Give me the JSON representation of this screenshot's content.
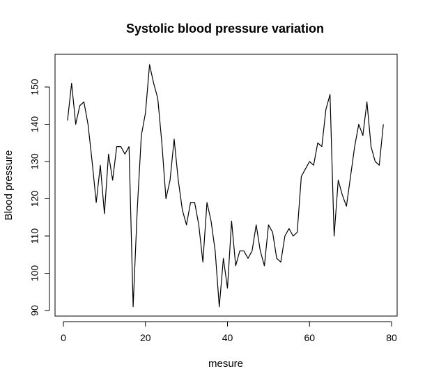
{
  "chart_data": {
    "type": "line",
    "title": "Systolic blood pressure variation",
    "xlabel": "mesure",
    "ylabel": "Blood pressure",
    "xlim": [
      0,
      80
    ],
    "ylim": [
      90,
      155
    ],
    "xticks": [
      0,
      20,
      40,
      60,
      80
    ],
    "yticks": [
      90,
      100,
      110,
      120,
      130,
      140,
      150
    ],
    "grid": false,
    "legend": "none",
    "line_color": "#000000",
    "series": [
      {
        "x": [
          1,
          2,
          3,
          4,
          5,
          6,
          7,
          8,
          9,
          10,
          11,
          12,
          13,
          14,
          15,
          16,
          17,
          18,
          19,
          20,
          21,
          22,
          23,
          24,
          25,
          26,
          27,
          28,
          29,
          30,
          31,
          32,
          33,
          34,
          35,
          36,
          37,
          38,
          39,
          40,
          41,
          42,
          43,
          44,
          45,
          46,
          47,
          48,
          49,
          50,
          51,
          52,
          53,
          54,
          55,
          56,
          57,
          58,
          59,
          60,
          61,
          62,
          63,
          64,
          65,
          66,
          67,
          68,
          69,
          70,
          71,
          72,
          73,
          74,
          75,
          76,
          77,
          78
        ],
        "values": [
          141,
          151,
          140,
          145,
          146,
          140,
          130,
          119,
          129,
          116,
          132,
          125,
          134,
          134,
          132,
          134,
          91,
          117,
          137,
          143,
          156,
          151,
          147,
          135,
          120,
          125,
          136,
          125,
          117,
          113,
          119,
          119,
          113,
          103,
          119,
          114,
          106,
          91,
          104,
          96,
          114,
          102,
          106,
          106,
          104,
          106,
          113,
          106,
          102,
          113,
          111,
          104,
          103,
          110,
          112,
          110,
          111,
          126,
          128,
          130,
          129,
          135,
          134,
          144,
          148,
          110,
          125,
          121,
          118,
          126,
          134,
          140,
          137,
          146,
          134,
          130,
          129,
          140
        ]
      }
    ]
  }
}
